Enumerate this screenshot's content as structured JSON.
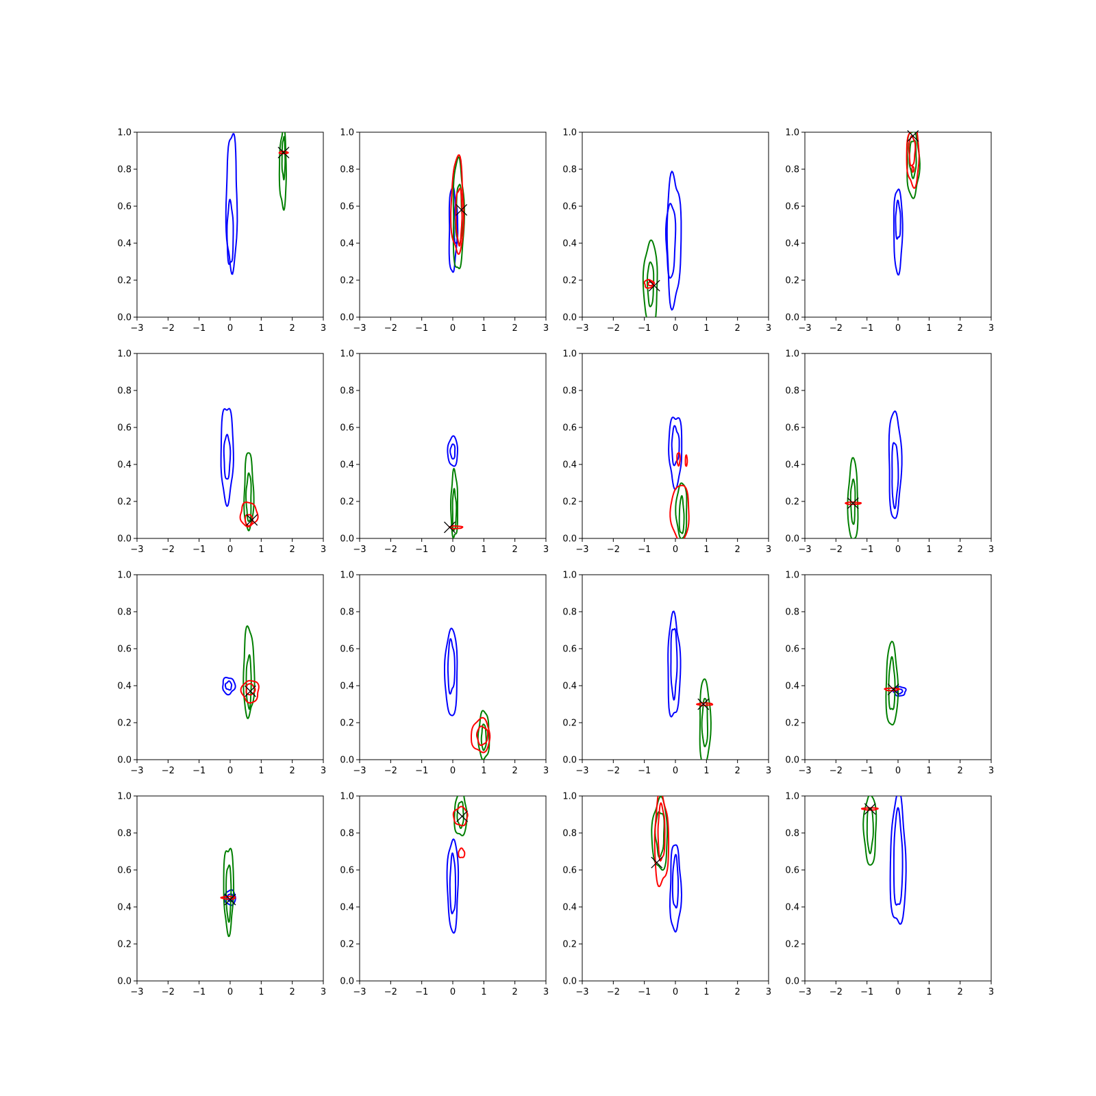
{
  "colors": {
    "blue": "#0000ff",
    "green": "#007f00",
    "red": "#ff0000",
    "marker": "#000000"
  },
  "chart_data": {
    "type": "contour",
    "layout": "4x4 grid",
    "xlim": [
      -3,
      3
    ],
    "ylim": [
      0,
      1
    ],
    "xticks": [
      "−3",
      "−2",
      "−1",
      "0",
      "1",
      "2",
      "3"
    ],
    "yticks": [
      "0.0",
      "0.2",
      "0.4",
      "0.6",
      "0.8",
      "1.0"
    ],
    "panels": [
      {
        "blue": [
          [
            0.05,
            0.62,
            0.35,
            0.74
          ],
          [
            0.0,
            0.45,
            0.2,
            0.34
          ]
        ],
        "green": [
          [
            1.7,
            0.8,
            0.22,
            0.42
          ],
          [
            1.72,
            0.86,
            0.1,
            0.22
          ]
        ],
        "red": [
          [
            1.72,
            0.89,
            0.28,
            0.012,
            "line"
          ]
        ],
        "marker": [
          1.72,
          0.89
        ]
      },
      {
        "blue": [
          [
            0.0,
            0.47,
            0.25,
            0.46
          ],
          [
            0.1,
            0.5,
            0.12,
            0.22
          ]
        ],
        "green": [
          [
            0.18,
            0.55,
            0.35,
            0.6
          ],
          [
            0.2,
            0.55,
            0.2,
            0.32
          ]
        ],
        "red": [
          [
            0.15,
            0.6,
            0.4,
            0.52
          ],
          [
            0.2,
            0.55,
            0.2,
            0.3
          ]
        ],
        "marker": [
          0.28,
          0.58
        ]
      },
      {
        "blue": [
          [
            -0.05,
            0.42,
            0.45,
            0.7
          ],
          [
            -0.15,
            0.42,
            0.3,
            0.4
          ]
        ],
        "green": [
          [
            -0.8,
            0.18,
            0.45,
            0.46
          ],
          [
            -0.8,
            0.18,
            0.2,
            0.24
          ]
        ],
        "red": [
          [
            -0.85,
            0.18,
            0.3,
            0.045
          ],
          [
            -0.8,
            0.18,
            0.16,
            0.02
          ]
        ],
        "marker": [
          -0.68,
          0.17
        ]
      },
      {
        "blue": [
          [
            0.0,
            0.47,
            0.28,
            0.46
          ],
          [
            0.0,
            0.52,
            0.16,
            0.2
          ]
        ],
        "green": [
          [
            0.48,
            0.83,
            0.4,
            0.36
          ],
          [
            0.48,
            0.86,
            0.22,
            0.2
          ]
        ],
        "red": [
          [
            0.48,
            0.87,
            0.4,
            0.32
          ],
          [
            0.45,
            0.9,
            0.2,
            0.16
          ],
          [
            0.48,
            0.8,
            0.06,
            0.03
          ]
        ],
        "marker": [
          0.48,
          0.98
        ]
      },
      {
        "blue": [
          [
            -0.1,
            0.46,
            0.4,
            0.52
          ],
          [
            -0.1,
            0.44,
            0.2,
            0.24
          ]
        ],
        "green": [
          [
            0.6,
            0.25,
            0.3,
            0.42
          ],
          [
            0.6,
            0.22,
            0.16,
            0.26
          ]
        ],
        "red": [
          [
            0.6,
            0.13,
            0.55,
            0.13
          ],
          [
            0.6,
            0.1,
            0.24,
            0.06
          ]
        ],
        "marker": [
          0.7,
          0.1
        ]
      },
      {
        "blue": [
          [
            0.0,
            0.47,
            0.32,
            0.16
          ],
          [
            0.0,
            0.47,
            0.15,
            0.08
          ]
        ],
        "green": [
          [
            0.05,
            0.18,
            0.22,
            0.36
          ],
          [
            0.05,
            0.15,
            0.12,
            0.22
          ]
        ],
        "red": [
          [
            0.1,
            0.06,
            0.42,
            0.014,
            "line"
          ]
        ],
        "marker": [
          -0.1,
          0.06
        ]
      },
      {
        "blue": [
          [
            0.0,
            0.48,
            0.42,
            0.38
          ],
          [
            0.0,
            0.5,
            0.24,
            0.2
          ]
        ],
        "green": [
          [
            0.2,
            0.15,
            0.35,
            0.3
          ],
          [
            0.2,
            0.12,
            0.15,
            0.2
          ]
        ],
        "red": [
          [
            0.15,
            0.14,
            0.6,
            0.3
          ],
          [
            0.1,
            0.43,
            0.1,
            0.07
          ],
          [
            0.35,
            0.42,
            0.06,
            0.06
          ]
        ],
        "marker": null
      },
      {
        "blue": [
          [
            -0.1,
            0.4,
            0.4,
            0.58
          ],
          [
            -0.1,
            0.35,
            0.2,
            0.35
          ]
        ],
        "green": [
          [
            -1.45,
            0.2,
            0.32,
            0.44
          ],
          [
            -1.45,
            0.2,
            0.14,
            0.24
          ]
        ],
        "red": [
          [
            -1.45,
            0.19,
            0.5,
            0.012,
            "line"
          ]
        ],
        "marker": [
          -1.45,
          0.19
        ]
      },
      {
        "blue": [
          [
            -0.05,
            0.4,
            0.4,
            0.09
          ],
          [
            -0.05,
            0.4,
            0.2,
            0.045
          ]
        ],
        "green": [
          [
            0.6,
            0.47,
            0.35,
            0.48
          ],
          [
            0.6,
            0.42,
            0.16,
            0.28
          ]
        ],
        "red": [
          [
            0.65,
            0.37,
            0.55,
            0.12
          ],
          [
            0.65,
            0.38,
            0.28,
            0.06
          ]
        ],
        "marker": [
          0.65,
          0.37
        ]
      },
      {
        "blue": [
          [
            -0.05,
            0.47,
            0.4,
            0.47
          ],
          [
            -0.05,
            0.5,
            0.22,
            0.28
          ]
        ],
        "green": [
          [
            1.0,
            0.13,
            0.35,
            0.26
          ],
          [
            1.0,
            0.12,
            0.15,
            0.14
          ]
        ],
        "red": [
          [
            0.9,
            0.13,
            0.6,
            0.18
          ],
          [
            0.95,
            0.13,
            0.35,
            0.1
          ]
        ],
        "marker": null
      },
      {
        "blue": [
          [
            -0.05,
            0.5,
            0.4,
            0.55
          ],
          [
            -0.05,
            0.53,
            0.2,
            0.38
          ]
        ],
        "green": [
          [
            0.95,
            0.2,
            0.35,
            0.46
          ],
          [
            0.95,
            0.2,
            0.18,
            0.26
          ]
        ],
        "red": [
          [
            0.95,
            0.3,
            0.5,
            0.012,
            "line"
          ]
        ],
        "marker": [
          0.9,
          0.3
        ]
      },
      {
        "blue": [
          [
            0.05,
            0.37,
            0.4,
            0.05
          ],
          [
            0.05,
            0.37,
            0.18,
            0.025
          ]
        ],
        "green": [
          [
            -0.2,
            0.4,
            0.38,
            0.45
          ],
          [
            -0.2,
            0.4,
            0.2,
            0.28
          ]
        ],
        "red": [
          [
            -0.2,
            0.38,
            0.45,
            0.014,
            "line"
          ]
        ],
        "marker": [
          -0.15,
          0.38
        ]
      },
      {
        "blue": [
          [
            0.0,
            0.45,
            0.35,
            0.08
          ],
          [
            0.0,
            0.45,
            0.18,
            0.04
          ]
        ],
        "green": [
          [
            -0.05,
            0.5,
            0.32,
            0.46
          ],
          [
            -0.05,
            0.48,
            0.16,
            0.3
          ]
        ],
        "red": [
          [
            -0.05,
            0.45,
            0.45,
            0.014,
            "line"
          ]
        ],
        "marker": [
          0.0,
          0.44
        ]
      },
      {
        "blue": [
          [
            0.0,
            0.52,
            0.35,
            0.5
          ],
          [
            0.0,
            0.52,
            0.18,
            0.32
          ]
        ],
        "green": [
          [
            0.25,
            0.9,
            0.4,
            0.24
          ],
          [
            0.25,
            0.9,
            0.2,
            0.14
          ]
        ],
        "red": [
          [
            0.25,
            0.89,
            0.45,
            0.1
          ],
          [
            0.28,
            0.69,
            0.2,
            0.05
          ]
        ],
        "marker": [
          0.3,
          0.89
        ]
      },
      {
        "blue": [
          [
            0.0,
            0.5,
            0.35,
            0.47
          ],
          [
            0.0,
            0.53,
            0.18,
            0.28
          ]
        ],
        "green": [
          [
            -0.5,
            0.79,
            0.5,
            0.38
          ],
          [
            -0.5,
            0.8,
            0.28,
            0.24
          ]
        ],
        "red": [
          [
            -0.45,
            0.76,
            0.45,
            0.49
          ],
          [
            -0.45,
            0.8,
            0.22,
            0.3
          ]
        ],
        "marker": [
          -0.6,
          0.64
        ]
      },
      {
        "blue": [
          [
            0.0,
            0.64,
            0.5,
            0.7
          ],
          [
            0.0,
            0.65,
            0.28,
            0.52
          ]
        ],
        "green": [
          [
            -0.9,
            0.82,
            0.4,
            0.38
          ],
          [
            -0.9,
            0.82,
            0.2,
            0.24
          ]
        ],
        "red": [
          [
            -0.9,
            0.93,
            0.5,
            0.012,
            "line"
          ]
        ],
        "marker": [
          -0.9,
          0.93
        ]
      }
    ]
  }
}
